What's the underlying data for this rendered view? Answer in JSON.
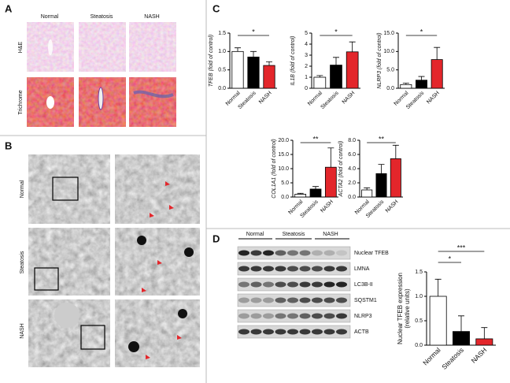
{
  "figure": {
    "panel_labels": [
      "A",
      "B",
      "C",
      "D"
    ],
    "panel_a": {
      "columns": [
        "Normal",
        "Steatosis",
        "NASH"
      ],
      "rows": [
        "H&E",
        "Trichrome"
      ]
    },
    "panel_b": {
      "rows": [
        "Normal",
        "Steatosis",
        "NASH"
      ]
    },
    "panel_d_blot": {
      "groups": [
        "Normal",
        "Steatosis",
        "NASH"
      ],
      "bands": [
        "Nuclear TFEB",
        "LMNA",
        "LC3B-II",
        "SQSTM1",
        "NLRP3",
        "ACTB"
      ]
    }
  },
  "chart_data": [
    {
      "type": "bar",
      "ylabel": [
        "TFEB (fold of control)"
      ],
      "categories": [
        "Normal",
        "Steatosis",
        "NASH"
      ],
      "values": [
        1.0,
        0.85,
        0.62
      ],
      "errors": [
        0.1,
        0.15,
        0.1
      ],
      "colors": [
        "#ffffff",
        "#000000",
        "#e3262b"
      ],
      "ylim": [
        0,
        1.5
      ],
      "yticks": [
        {
          "value": 0,
          "label": "0.0"
        },
        0.5,
        {
          "value": 1,
          "label": "1.0"
        },
        1.5
      ],
      "significance": [
        "*"
      ]
    },
    {
      "type": "bar",
      "ylabel": [
        "IL1B (fold of control)"
      ],
      "categories": [
        "Normal",
        "Steatosis",
        "NASH"
      ],
      "values": [
        1.0,
        2.1,
        3.3
      ],
      "errors": [
        0.15,
        0.7,
        0.9
      ],
      "colors": [
        "#ffffff",
        "#000000",
        "#e3262b"
      ],
      "ylim": [
        0,
        5
      ],
      "yticks": [
        0,
        1,
        2,
        3,
        4,
        5
      ],
      "significance": [
        "*"
      ]
    },
    {
      "type": "bar",
      "ylabel": [
        "NLRP3 (fold of control)"
      ],
      "categories": [
        "Normal",
        "Steatosis",
        "NASH"
      ],
      "values": [
        1.0,
        2.2,
        7.8
      ],
      "errors": [
        0.4,
        1.0,
        3.3
      ],
      "colors": [
        "#ffffff",
        "#000000",
        "#e3262b"
      ],
      "ylim": [
        0,
        15
      ],
      "yticks": [
        {
          "value": 0,
          "label": "0.0"
        },
        {
          "value": 5,
          "label": "5.0"
        },
        {
          "value": 10,
          "label": "10.0"
        },
        {
          "value": 15,
          "label": "15.0"
        }
      ],
      "significance": [
        "*"
      ]
    },
    {
      "type": "bar",
      "ylabel": [
        "COL1A1 (fold of control)"
      ],
      "categories": [
        "Normal",
        "Steatosis",
        "NASH"
      ],
      "values": [
        1.0,
        2.8,
        10.5
      ],
      "errors": [
        0.3,
        0.9,
        6.8
      ],
      "colors": [
        "#ffffff",
        "#000000",
        "#e3262b"
      ],
      "ylim": [
        0,
        20
      ],
      "yticks": [
        {
          "value": 0,
          "label": "0.0"
        },
        {
          "value": 5,
          "label": "5.0"
        },
        {
          "value": 10,
          "label": "10.0"
        },
        {
          "value": 15,
          "label": "15.0"
        },
        {
          "value": 20,
          "label": "20.0"
        }
      ],
      "significance": [
        "**"
      ]
    },
    {
      "type": "bar",
      "ylabel": [
        "ACTA2 (fold of control)"
      ],
      "categories": [
        "Normal",
        "Steatosis",
        "NASH"
      ],
      "values": [
        1.0,
        3.3,
        5.4
      ],
      "errors": [
        0.3,
        1.3,
        1.9
      ],
      "colors": [
        "#ffffff",
        "#000000",
        "#e3262b"
      ],
      "ylim": [
        0,
        8
      ],
      "yticks": [
        {
          "value": 0,
          "label": "0.0"
        },
        {
          "value": 2,
          "label": "2.0"
        },
        {
          "value": 4,
          "label": "4.0"
        },
        {
          "value": 6,
          "label": "6.0"
        },
        {
          "value": 8,
          "label": "8.0"
        }
      ],
      "significance": [
        "**"
      ]
    },
    {
      "type": "bar",
      "ylabel": [
        "Nuclear TFEB expression",
        "(relative units)"
      ],
      "categories": [
        "Normal",
        "Steatosis",
        "NASH"
      ],
      "values": [
        1.0,
        0.28,
        0.13
      ],
      "errors": [
        0.35,
        0.32,
        0.23
      ],
      "colors": [
        "#ffffff",
        "#000000",
        "#e3262b"
      ],
      "ylim": [
        0,
        1.5
      ],
      "yticks": [
        {
          "value": 0,
          "label": "0.0"
        },
        {
          "value": 0.5,
          "label": "0.5"
        },
        {
          "value": 1,
          "label": "1.0"
        },
        {
          "value": 1.5,
          "label": "1.5"
        }
      ],
      "significance": [
        "*",
        "***"
      ]
    }
  ]
}
